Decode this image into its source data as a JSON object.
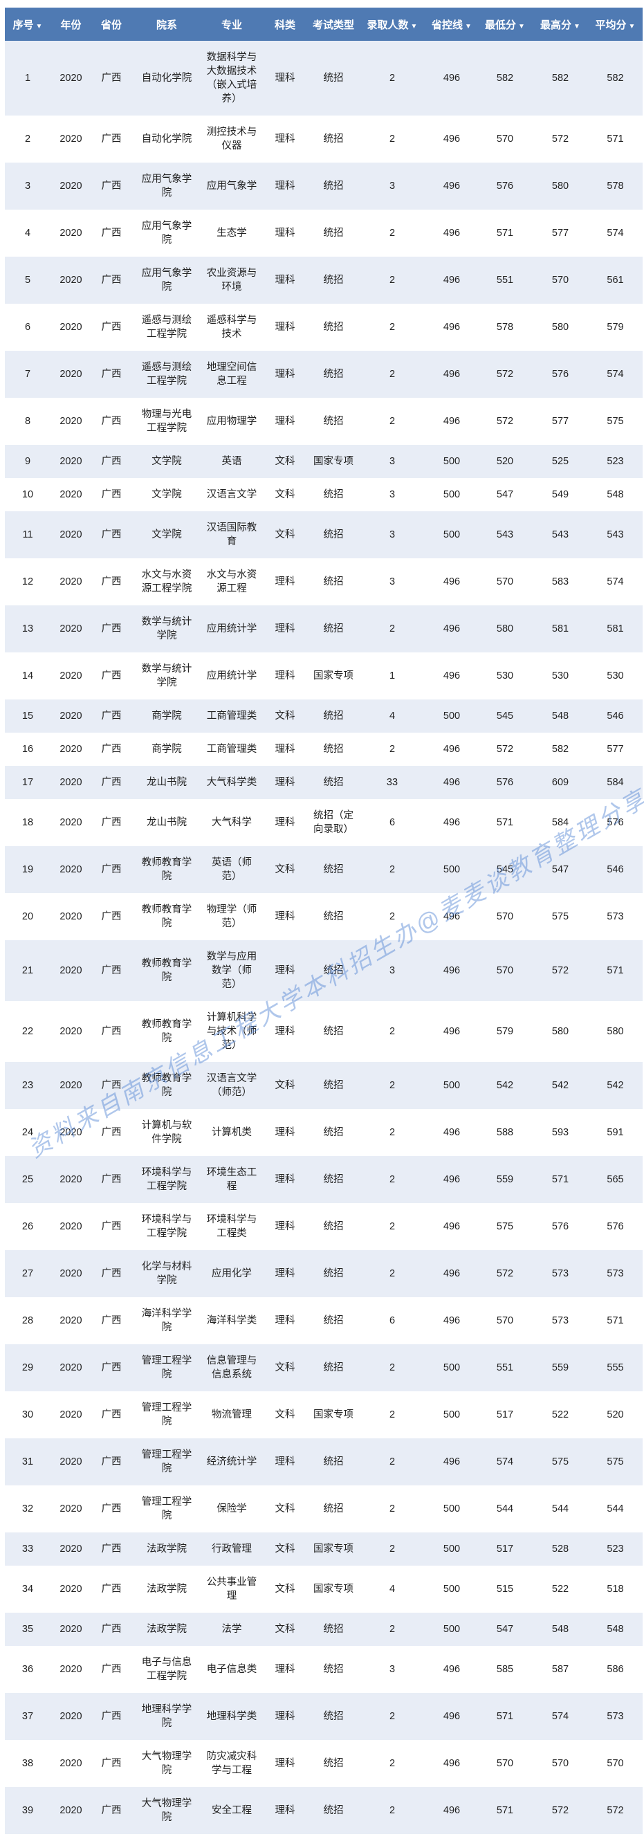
{
  "table": {
    "headers": [
      {
        "label": "序号",
        "sortable": true
      },
      {
        "label": "年份",
        "sortable": false
      },
      {
        "label": "省份",
        "sortable": false
      },
      {
        "label": "院系",
        "sortable": false
      },
      {
        "label": "专业",
        "sortable": false
      },
      {
        "label": "科类",
        "sortable": false
      },
      {
        "label": "考试类型",
        "sortable": false
      },
      {
        "label": "录取人数",
        "sortable": true
      },
      {
        "label": "省控线",
        "sortable": true
      },
      {
        "label": "最低分",
        "sortable": true
      },
      {
        "label": "最高分",
        "sortable": true
      },
      {
        "label": "平均分",
        "sortable": true
      }
    ],
    "sort_icon": "caret-down-icon",
    "rows": [
      [
        "1",
        "2020",
        "广西",
        "自动化学院",
        "数据科学与大数据技术（嵌入式培养）",
        "理科",
        "统招",
        "2",
        "496",
        "582",
        "582",
        "582"
      ],
      [
        "2",
        "2020",
        "广西",
        "自动化学院",
        "测控技术与仪器",
        "理科",
        "统招",
        "2",
        "496",
        "570",
        "572",
        "571"
      ],
      [
        "3",
        "2020",
        "广西",
        "应用气象学院",
        "应用气象学",
        "理科",
        "统招",
        "3",
        "496",
        "576",
        "580",
        "578"
      ],
      [
        "4",
        "2020",
        "广西",
        "应用气象学院",
        "生态学",
        "理科",
        "统招",
        "2",
        "496",
        "571",
        "577",
        "574"
      ],
      [
        "5",
        "2020",
        "广西",
        "应用气象学院",
        "农业资源与环境",
        "理科",
        "统招",
        "2",
        "496",
        "551",
        "570",
        "561"
      ],
      [
        "6",
        "2020",
        "广西",
        "遥感与测绘工程学院",
        "遥感科学与技术",
        "理科",
        "统招",
        "2",
        "496",
        "578",
        "580",
        "579"
      ],
      [
        "7",
        "2020",
        "广西",
        "遥感与测绘工程学院",
        "地理空间信息工程",
        "理科",
        "统招",
        "2",
        "496",
        "572",
        "576",
        "574"
      ],
      [
        "8",
        "2020",
        "广西",
        "物理与光电工程学院",
        "应用物理学",
        "理科",
        "统招",
        "2",
        "496",
        "572",
        "577",
        "575"
      ],
      [
        "9",
        "2020",
        "广西",
        "文学院",
        "英语",
        "文科",
        "国家专项",
        "3",
        "500",
        "520",
        "525",
        "523"
      ],
      [
        "10",
        "2020",
        "广西",
        "文学院",
        "汉语言文学",
        "文科",
        "统招",
        "3",
        "500",
        "547",
        "549",
        "548"
      ],
      [
        "11",
        "2020",
        "广西",
        "文学院",
        "汉语国际教育",
        "文科",
        "统招",
        "3",
        "500",
        "543",
        "543",
        "543"
      ],
      [
        "12",
        "2020",
        "广西",
        "水文与水资源工程学院",
        "水文与水资源工程",
        "理科",
        "统招",
        "3",
        "496",
        "570",
        "583",
        "574"
      ],
      [
        "13",
        "2020",
        "广西",
        "数学与统计学院",
        "应用统计学",
        "理科",
        "统招",
        "2",
        "496",
        "580",
        "581",
        "581"
      ],
      [
        "14",
        "2020",
        "广西",
        "数学与统计学院",
        "应用统计学",
        "理科",
        "国家专项",
        "1",
        "496",
        "530",
        "530",
        "530"
      ],
      [
        "15",
        "2020",
        "广西",
        "商学院",
        "工商管理类",
        "文科",
        "统招",
        "4",
        "500",
        "545",
        "548",
        "546"
      ],
      [
        "16",
        "2020",
        "广西",
        "商学院",
        "工商管理类",
        "理科",
        "统招",
        "2",
        "496",
        "572",
        "582",
        "577"
      ],
      [
        "17",
        "2020",
        "广西",
        "龙山书院",
        "大气科学类",
        "理科",
        "统招",
        "33",
        "496",
        "576",
        "609",
        "584"
      ],
      [
        "18",
        "2020",
        "广西",
        "龙山书院",
        "大气科学",
        "理科",
        "统招（定向录取）",
        "6",
        "496",
        "571",
        "584",
        "576"
      ],
      [
        "19",
        "2020",
        "广西",
        "教师教育学院",
        "英语（师范）",
        "文科",
        "统招",
        "2",
        "500",
        "545",
        "547",
        "546"
      ],
      [
        "20",
        "2020",
        "广西",
        "教师教育学院",
        "物理学（师范）",
        "理科",
        "统招",
        "2",
        "496",
        "570",
        "575",
        "573"
      ],
      [
        "21",
        "2020",
        "广西",
        "教师教育学院",
        "数学与应用数学（师范）",
        "理科",
        "统招",
        "3",
        "496",
        "570",
        "572",
        "571"
      ],
      [
        "22",
        "2020",
        "广西",
        "教师教育学院",
        "计算机科学与技术（师范）",
        "理科",
        "统招",
        "2",
        "496",
        "579",
        "580",
        "580"
      ],
      [
        "23",
        "2020",
        "广西",
        "教师教育学院",
        "汉语言文学（师范）",
        "文科",
        "统招",
        "2",
        "500",
        "542",
        "542",
        "542"
      ],
      [
        "24",
        "2020",
        "广西",
        "计算机与软件学院",
        "计算机类",
        "理科",
        "统招",
        "2",
        "496",
        "588",
        "593",
        "591"
      ],
      [
        "25",
        "2020",
        "广西",
        "环境科学与工程学院",
        "环境生态工程",
        "理科",
        "统招",
        "2",
        "496",
        "559",
        "571",
        "565"
      ],
      [
        "26",
        "2020",
        "广西",
        "环境科学与工程学院",
        "环境科学与工程类",
        "理科",
        "统招",
        "2",
        "496",
        "575",
        "576",
        "576"
      ],
      [
        "27",
        "2020",
        "广西",
        "化学与材料学院",
        "应用化学",
        "理科",
        "统招",
        "2",
        "496",
        "572",
        "573",
        "573"
      ],
      [
        "28",
        "2020",
        "广西",
        "海洋科学学院",
        "海洋科学类",
        "理科",
        "统招",
        "6",
        "496",
        "570",
        "573",
        "571"
      ],
      [
        "29",
        "2020",
        "广西",
        "管理工程学院",
        "信息管理与信息系统",
        "文科",
        "统招",
        "2",
        "500",
        "551",
        "559",
        "555"
      ],
      [
        "30",
        "2020",
        "广西",
        "管理工程学院",
        "物流管理",
        "文科",
        "国家专项",
        "2",
        "500",
        "517",
        "522",
        "520"
      ],
      [
        "31",
        "2020",
        "广西",
        "管理工程学院",
        "经济统计学",
        "理科",
        "统招",
        "2",
        "496",
        "574",
        "575",
        "575"
      ],
      [
        "32",
        "2020",
        "广西",
        "管理工程学院",
        "保险学",
        "文科",
        "统招",
        "2",
        "500",
        "544",
        "544",
        "544"
      ],
      [
        "33",
        "2020",
        "广西",
        "法政学院",
        "行政管理",
        "文科",
        "国家专项",
        "2",
        "500",
        "517",
        "528",
        "523"
      ],
      [
        "34",
        "2020",
        "广西",
        "法政学院",
        "公共事业管理",
        "文科",
        "国家专项",
        "4",
        "500",
        "515",
        "522",
        "518"
      ],
      [
        "35",
        "2020",
        "广西",
        "法政学院",
        "法学",
        "文科",
        "统招",
        "2",
        "500",
        "547",
        "548",
        "548"
      ],
      [
        "36",
        "2020",
        "广西",
        "电子与信息工程学院",
        "电子信息类",
        "理科",
        "统招",
        "3",
        "496",
        "585",
        "587",
        "586"
      ],
      [
        "37",
        "2020",
        "广西",
        "地理科学学院",
        "地理科学类",
        "理科",
        "统招",
        "2",
        "496",
        "571",
        "574",
        "573"
      ],
      [
        "38",
        "2020",
        "广西",
        "大气物理学院",
        "防灾减灾科学与工程",
        "理科",
        "统招",
        "2",
        "496",
        "570",
        "570",
        "570"
      ],
      [
        "39",
        "2020",
        "广西",
        "大气物理学院",
        "安全工程",
        "理科",
        "统招",
        "2",
        "496",
        "571",
        "572",
        "572"
      ]
    ]
  },
  "watermark": "资料来自南京信息工程大学本科招生办@麦麦谈教育整理分享",
  "colors": {
    "header_bg": "#4f7ab3",
    "row_stripe": "#e8edf6",
    "watermark": "#5082d2"
  }
}
